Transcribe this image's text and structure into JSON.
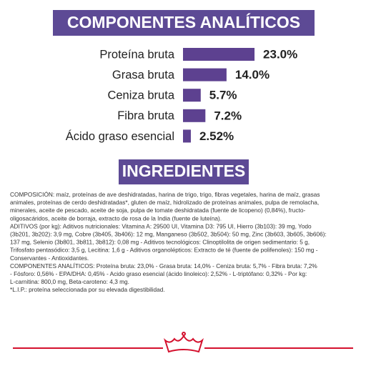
{
  "chart_data": {
    "type": "bar",
    "title": "COMPONENTES ANALÍTICOS",
    "categories": [
      "Proteína bruta",
      "Grasa bruta",
      "Ceniza bruta",
      "Fibra bruta",
      "Ácido graso esencial"
    ],
    "values": [
      23.0,
      14.0,
      5.7,
      7.2,
      2.52
    ],
    "value_labels": [
      "23.0%",
      "14.0%",
      "5.7%",
      "7.2%",
      "2.52%"
    ],
    "color": "#5d4190"
  },
  "ingredients": {
    "title": "INGREDIENTES",
    "lines": [
      "COMPOSICIÓN: maíz, proteínas de ave deshidratadas, harina de trigo, trigo, fibras vegetales, harina de maíz, grasas",
      "animales, proteínas de cerdo deshidratadas*, gluten de maíz, hidrolizado de proteínas animales, pulpa de remolacha,",
      "minerales, aceite de pescado, aceite de soja, pulpa de tomate deshidratada (fuente de licopeno) (0,84%), fructo-",
      "oligosacáridos, aceite de borraja, extracto de rosa de la India (fuente de luteína).",
      "ADITIVOS (por kg): Aditivos nutricionales: Vitamina A: 29500 UI, Vitamina D3: 795 UI, Hierro (3b103): 39 mg, Yodo",
      "(3b201, 3b202): 3,9 mg, Cobre (3b405, 3b406): 12 mg, Manganeso (3b502, 3b504): 50 mg, Zinc (3b603, 3b605, 3b606):",
      "137 mg, Selenio (3b801, 3b811, 3b812): 0,08 mg - Aditivos tecnológicos: Clinoptilolita de origen sedimentario: 5 g,",
      "Trifosfato pentasódico: 3,5 g, Lecitina: 1,6 g - Aditivos organolépticos: Extracto de té (fuente de polifenoles): 150 mg -",
      "Conservantes - Antioxidantes.",
      "COMPONENTES ANALÍTICOS: Proteína bruta: 23,0% - Grasa bruta: 14,0% - Ceniza bruta: 5,7% - Fibra bruta: 7,2%",
      "- Fósforo: 0,56% - EPA/DHA: 0,45% - Acido graso esencial (ácido linoleico): 2,52% - L-triptófano: 0,32% - Por kg:",
      "L-carnitina: 800,0 mg, Beta-caroteno: 4,3 mg.",
      "*L.I.P.: proteína seleccionada por su elevada digestibilidad."
    ]
  }
}
